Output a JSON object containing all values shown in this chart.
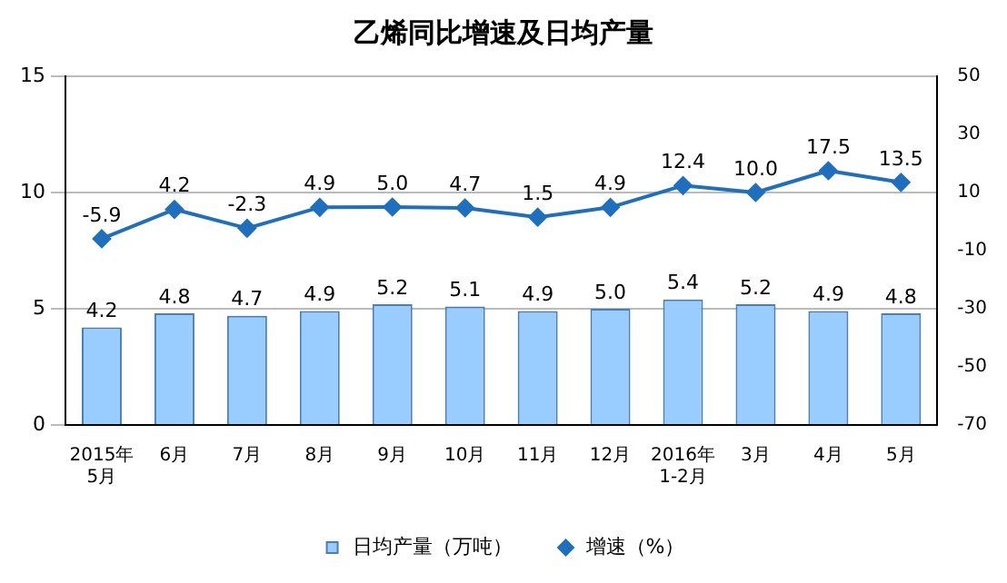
{
  "chart_data": {
    "type": "bar",
    "title": "乙烯同比增速及日均产量",
    "categories": [
      "2015年\n5月",
      "6月",
      "7月",
      "8月",
      "9月",
      "10月",
      "11月",
      "12月",
      "2016年\n1-2月",
      "3月",
      "4月",
      "5月"
    ],
    "series": [
      {
        "name": "日均产量（万吨）",
        "color": "#99ccff",
        "values": [
          4.2,
          4.8,
          4.7,
          4.9,
          5.2,
          5.1,
          4.9,
          5.0,
          5.4,
          5.2,
          4.9,
          4.8
        ],
        "value_labels": [
          "4.2",
          "4.8",
          "4.7",
          "4.9",
          "5.2",
          "5.1",
          "4.9",
          "5.0",
          "5.4",
          "5.2",
          "4.9",
          "4.8"
        ]
      },
      {
        "name": "增速（%）",
        "type": "line",
        "axis": "y2",
        "color": "#1f6fbf",
        "marker": "diamond",
        "values": [
          -5.9,
          4.2,
          -2.3,
          4.9,
          5.0,
          4.7,
          1.5,
          4.9,
          12.4,
          10.0,
          17.5,
          13.5
        ],
        "value_labels": [
          "-5.9",
          "4.2",
          "-2.3",
          "4.9",
          "5.0",
          "4.7",
          "1.5",
          "4.9",
          "12.4",
          "10.0",
          "17.5",
          "13.5"
        ]
      }
    ],
    "ylim": [
      0,
      15
    ],
    "yticks": [
      0,
      5,
      10,
      15
    ],
    "y2lim": [
      -70,
      50
    ],
    "y2ticks": [
      -70,
      -50,
      -30,
      -10,
      10,
      30,
      50
    ],
    "grid": "y",
    "legend": "bottom"
  }
}
